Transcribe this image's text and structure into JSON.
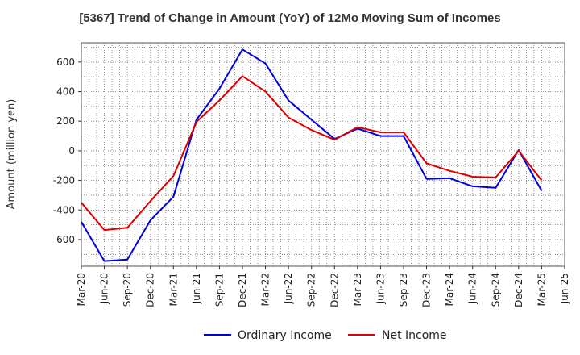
{
  "chart_data": {
    "type": "line",
    "title": "[5367]  Trend of Change in Amount (YoY) of 12Mo Moving Sum of Incomes",
    "ylabel": "Amount (million yen)",
    "xlabel": "",
    "ylim": [
      -780,
      730
    ],
    "yticks": [
      -600,
      -400,
      -200,
      0,
      200,
      400,
      600
    ],
    "grid": true,
    "legend_position": "bottom",
    "x_tick_labels": [
      "Mar-20",
      "Jun-20",
      "Sep-20",
      "Dec-20",
      "Mar-21",
      "Jun-21",
      "Sep-21",
      "Dec-21",
      "Mar-22",
      "Jun-22",
      "Sep-22",
      "Dec-22",
      "Mar-23",
      "Jun-23",
      "Sep-23",
      "Dec-23",
      "Mar-24",
      "Jun-24",
      "Sep-24",
      "Dec-24",
      "Mar-25",
      "Jun-25"
    ],
    "x": [
      "Mar-20",
      "Jun-20",
      "Sep-20",
      "Dec-20",
      "Mar-21",
      "Jun-21",
      "Sep-21",
      "Dec-21",
      "Mar-22",
      "Jun-22",
      "Sep-22",
      "Dec-22",
      "Mar-23",
      "Jun-23",
      "Sep-23",
      "Dec-23",
      "Mar-24",
      "Jun-24",
      "Sep-24",
      "Dec-24",
      "Mar-25"
    ],
    "series": [
      {
        "name": "Ordinary Income",
        "color": "#0000dd",
        "values": [
          -480,
          -745,
          -735,
          -470,
          -310,
          210,
          420,
          685,
          590,
          340,
          210,
          80,
          150,
          100,
          100,
          -190,
          -185,
          -240,
          -250,
          5,
          -270
        ]
      },
      {
        "name": "Net Income",
        "color": "#dd0000",
        "values": [
          -350,
          -535,
          -520,
          -340,
          -170,
          195,
          340,
          505,
          400,
          225,
          140,
          75,
          160,
          125,
          125,
          -85,
          -135,
          -175,
          -180,
          0,
          -200
        ]
      }
    ]
  }
}
